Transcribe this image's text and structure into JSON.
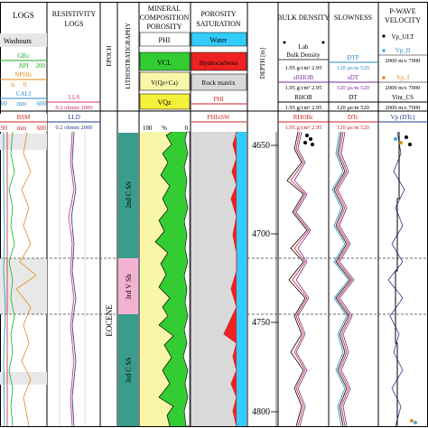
{
  "headers": {
    "logs": "LOGS",
    "resistivity": [
      "RESISTIVITY",
      "LOGS"
    ],
    "epoch": "EPOCH",
    "litho": "LITHOSTRATIGRAPHY",
    "mineral": [
      "MINERAL",
      "COMPOSITION",
      "POROSITY"
    ],
    "porosity": [
      "POROSITY",
      "SATURATION"
    ],
    "depth": "DEPTH [m]",
    "bulk_density": "BULK DENSITY",
    "slowness": "SLOWNESS",
    "pwave": [
      "P-WAVE",
      "VELOCITY"
    ]
  },
  "legend": {
    "washouts": "Washouts",
    "grc": "GRc",
    "api": "API",
    "api_max": "200",
    "nphic": "NPHIc",
    "is": "ls",
    "is_val": "0",
    "cali": "CALI",
    "cali_min": "00",
    "cali_unit": "mm",
    "cali_max": "600",
    "bsm": "BSM",
    "bsm_min": "90",
    "bsm_unit": "mm",
    "bsm_max": "600",
    "lls": "LLS",
    "lls_range": "0.2  ohmm 2000",
    "lld": "LLD",
    "lld_range": "0.2  ohmm 2000",
    "phi": "PHI",
    "vcl": "VCL",
    "vqzca": "V(Qz+Ca)",
    "vqz": "VQz",
    "pct_0": "100",
    "pct_unit": "%",
    "pct_end": "0",
    "water": "Water",
    "hydrocarbons": "Hydrocarbons",
    "rock_matrix": "Rock matrix",
    "phi2": "PHI",
    "phixsw": "PHIxSW",
    "lab": "Lab",
    "lab_bd": "Bulk Density",
    "bd_range": "1.95 g/cm³ 2.95",
    "srhob": "sRHOB",
    "rhob": "RHOB",
    "rhobc": "RHOBc",
    "dtp": "DTP",
    "sdt": "sDT",
    "dt": "DT",
    "dtc": "DTc",
    "sl_range": "120  µs/m  520",
    "vp_ult": "Vp_ULT",
    "vp_ii": "Vp_II",
    "vp_i": "Vp_I",
    "vint_cs": "Vint_CS",
    "vp_range": "2000 m/s 7000",
    "vp_dtc": "Vp (DTc)"
  },
  "epoch_label": "EOCENE",
  "litho_units": [
    "2nd C SS",
    "3rd V Sh",
    "3rd C SS"
  ],
  "depth_ticks": [
    "4650",
    "4700",
    "4750",
    "4800"
  ],
  "colors": {
    "yellow": "#f8f6a8",
    "green": "#33cc33",
    "lightgreen": "#6ddc6d",
    "water": "#33ccff",
    "hydro": "#ee2222",
    "matrix": "#d9d9d9",
    "teal": "#3a9c8c",
    "pink": "#f3b3d0",
    "navy": "#1e5e8c"
  }
}
